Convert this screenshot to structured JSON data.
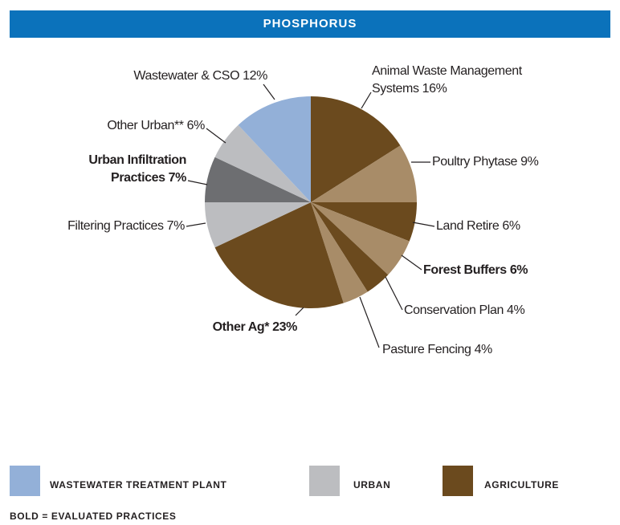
{
  "chart_data": {
    "type": "pie",
    "title": "PHOSPHORUS",
    "categories": [
      "Animal Waste Management Systems",
      "Poultry Phytase",
      "Land Retire",
      "Forest Buffers",
      "Conservation Plan",
      "Pasture Fencing",
      "Other Ag*",
      "Filtering  Practices",
      "Urban Infiltration Practices",
      "Other Urban**",
      "Wastewater & CSO"
    ],
    "values": [
      16,
      9,
      6,
      6,
      4,
      4,
      23,
      7,
      7,
      6,
      12
    ],
    "value_labels": [
      "16%",
      "9%",
      "6%",
      "6%",
      "4%",
      "4%",
      "23%",
      "7%",
      "7%",
      "6%",
      "12%"
    ],
    "colors": [
      "#6b4a1e",
      "#a88c68",
      "#6b4a1e",
      "#a88c68",
      "#6b4a1e",
      "#a88c68",
      "#6b4a1e",
      "#bcbdc0",
      "#6d6e71",
      "#bcbdc0",
      "#93b0d8"
    ],
    "bold": [
      false,
      false,
      false,
      true,
      false,
      false,
      true,
      false,
      true,
      false,
      false
    ],
    "legend": [
      {
        "name": "WASTEWATER TREATMENT PLANT",
        "color": "#93b0d8"
      },
      {
        "name": "URBAN",
        "color": "#bcbdc0"
      },
      {
        "name": "AGRICULTURE",
        "color": "#6b4a1e"
      }
    ],
    "note": "BOLD = EVALUATED PRACTICES"
  }
}
